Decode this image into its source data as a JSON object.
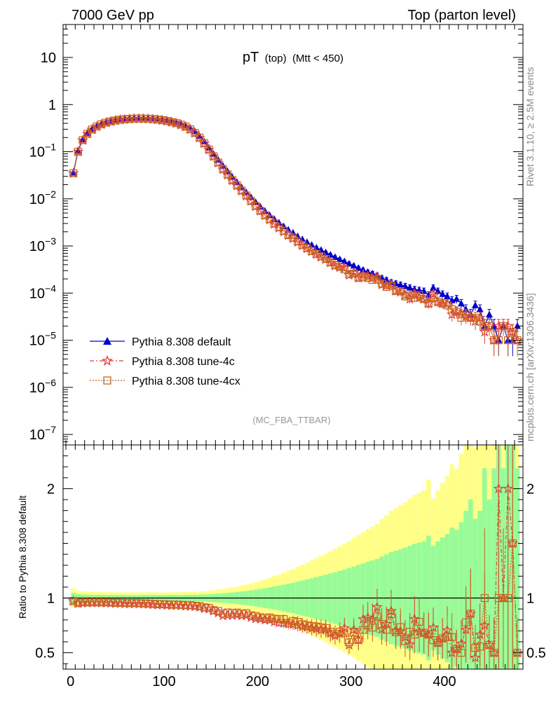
{
  "header": {
    "left": "7000 GeV pp",
    "right": "Top (parton level)"
  },
  "main_title": {
    "main": "pT",
    "qual": "(top)",
    "cut": "(Mtt < 450)"
  },
  "watermark": "(MC_FBA_TTBAR)",
  "side_text": {
    "rivet": "Rivet 3.1.10, ≥ 2.5M events",
    "source": "mcplots.cern.ch [arXiv:1306.3436]"
  },
  "ratio_ylabel": "Ratio to Pythia 8.308 default",
  "colors": {
    "default": "#0000cc",
    "tune4c": "#e03c3c",
    "tune4cx": "#c8641e",
    "band_inner": "#98fb98",
    "band_outer": "#ffff88"
  },
  "chart_data": {
    "type": "line",
    "xlim": [
      -8,
      484
    ],
    "top": {
      "ylim": [
        6e-08,
        50
      ],
      "log": true,
      "ytick_labels": [
        "10",
        "1",
        "10-1",
        "10-2",
        "10-3",
        "10-4",
        "10-5",
        "10-6",
        "10-7"
      ]
    },
    "ratio": {
      "ylim": [
        0.35,
        2.4
      ],
      "ytick_labels": [
        "0.5",
        "1",
        "2"
      ]
    },
    "xtick_labels": [
      "0",
      "100",
      "200",
      "300",
      "400"
    ],
    "legend": {
      "placement": "lower-left",
      "entries": [
        "Pythia 8.308 default",
        "Pythia 8.308 tune-4c",
        "Pythia 8.308 tune-4cx"
      ]
    },
    "x": [
      3,
      8,
      13,
      18,
      23,
      28,
      33,
      38,
      43,
      48,
      53,
      58,
      63,
      68,
      73,
      78,
      83,
      88,
      93,
      98,
      103,
      108,
      113,
      118,
      123,
      128,
      133,
      138,
      143,
      148,
      153,
      158,
      163,
      168,
      173,
      178,
      183,
      188,
      193,
      198,
      203,
      208,
      213,
      218,
      223,
      228,
      233,
      238,
      243,
      248,
      253,
      258,
      263,
      268,
      273,
      278,
      283,
      288,
      293,
      298,
      303,
      308,
      313,
      318,
      323,
      328,
      333,
      338,
      343,
      348,
      353,
      358,
      363,
      368,
      373,
      378,
      383,
      388,
      393,
      398,
      403,
      408,
      413,
      418,
      423,
      428,
      433,
      438,
      443,
      448,
      453,
      458,
      463,
      468,
      473,
      478
    ],
    "series": [
      {
        "name": "Pythia 8.308 default",
        "values": [
          0.036,
          0.105,
          0.183,
          0.25,
          0.308,
          0.357,
          0.398,
          0.431,
          0.458,
          0.48,
          0.498,
          0.51,
          0.52,
          0.527,
          0.53,
          0.53,
          0.527,
          0.52,
          0.51,
          0.495,
          0.477,
          0.455,
          0.43,
          0.4,
          0.365,
          0.32,
          0.27,
          0.215,
          0.165,
          0.122,
          0.09,
          0.067,
          0.05,
          0.038,
          0.029,
          0.0225,
          0.0175,
          0.0137,
          0.0108,
          0.0085,
          0.0068,
          0.0055,
          0.0045,
          0.0037,
          0.0031,
          0.0026,
          0.0022,
          0.0019,
          0.0016,
          0.00138,
          0.0012,
          0.00105,
          0.00092,
          0.00082,
          0.00073,
          0.00065,
          0.00058,
          0.00052,
          0.00047,
          0.00042,
          0.00038,
          0.00034,
          0.00031,
          0.00028,
          0.00026,
          0.00024,
          0.00021,
          0.00019,
          0.00017,
          0.00016,
          0.00015,
          0.00014,
          0.00013,
          0.00012,
          0.000115,
          0.00011,
          9e-05,
          0.00013,
          0.00011,
          9.5e-05,
          8.5e-05,
          7e-05,
          7.5e-05,
          6e-05,
          4.5e-05,
          3.5e-05,
          5.5e-05,
          4.5e-05,
          2e-05,
          3.5e-05,
          2e-05,
          1e-05,
          2e-05,
          1e-05,
          1e-05,
          2e-05
        ]
      },
      {
        "name": "Pythia 8.308 tune-4c",
        "values": [
          0.035,
          0.1,
          0.175,
          0.239,
          0.295,
          0.342,
          0.381,
          0.412,
          0.437,
          0.457,
          0.474,
          0.484,
          0.493,
          0.5,
          0.502,
          0.501,
          0.498,
          0.489,
          0.478,
          0.464,
          0.446,
          0.424,
          0.401,
          0.372,
          0.338,
          0.296,
          0.249,
          0.197,
          0.149,
          0.11,
          0.0794,
          0.058,
          0.042,
          0.032,
          0.0244,
          0.019,
          0.0147,
          0.0115,
          0.0089,
          0.0069,
          0.0055,
          0.0044,
          0.0036,
          0.0029,
          0.0024,
          0.002,
          0.00168,
          0.00144,
          0.0012,
          0.00102,
          0.00088,
          0.00076,
          0.00066,
          0.00058,
          0.00052,
          0.00044,
          0.00038,
          0.00035,
          0.00034,
          0.00024,
          0.00027,
          0.00021,
          0.00025,
          0.00023,
          0.00021,
          0.00022,
          0.00015,
          0.000145,
          0.00015,
          0.000112,
          0.000105,
          9e-05,
          7.5e-05,
          9.7e-05,
          8e-05,
          7.5e-05,
          6e-05,
          9.5e-05,
          6.5e-05,
          6e-05,
          6e-05,
          3.5e-05,
          4e-05,
          3.5e-05,
          3.2e-05,
          3e-05,
          2.5e-05,
          3e-05,
          1.5e-05,
          2e-05,
          1e-05,
          2e-05,
          2e-05,
          2e-05,
          1.5e-05,
          1e-05
        ]
      },
      {
        "name": "Pythia 8.308 tune-4cx",
        "values": [
          0.035,
          0.1,
          0.176,
          0.24,
          0.296,
          0.343,
          0.382,
          0.414,
          0.439,
          0.459,
          0.476,
          0.487,
          0.496,
          0.503,
          0.505,
          0.504,
          0.5,
          0.492,
          0.481,
          0.467,
          0.449,
          0.427,
          0.404,
          0.375,
          0.341,
          0.299,
          0.251,
          0.199,
          0.151,
          0.111,
          0.08,
          0.059,
          0.043,
          0.033,
          0.025,
          0.0195,
          0.015,
          0.0118,
          0.0091,
          0.0071,
          0.0056,
          0.0045,
          0.0037,
          0.003,
          0.0025,
          0.0021,
          0.0017,
          0.0015,
          0.00125,
          0.00105,
          0.0009,
          0.00078,
          0.00068,
          0.0006,
          0.00053,
          0.00045,
          0.00039,
          0.00036,
          0.00032,
          0.00025,
          0.00026,
          0.00021,
          0.00022,
          0.00021,
          0.00019,
          0.0002,
          0.00016,
          0.000135,
          0.000145,
          0.00011,
          0.00011,
          8.5e-05,
          9e-05,
          8e-05,
          9e-05,
          7.5e-05,
          6e-05,
          8e-05,
          6.5e-05,
          6e-05,
          5.5e-05,
          4.5e-05,
          4e-05,
          3e-05,
          3.5e-05,
          3e-05,
          3e-05,
          2.5e-05,
          2e-05,
          2e-05,
          1e-05,
          1e-05,
          2e-05,
          1e-05,
          1.5e-05,
          1e-05
        ]
      }
    ]
  }
}
